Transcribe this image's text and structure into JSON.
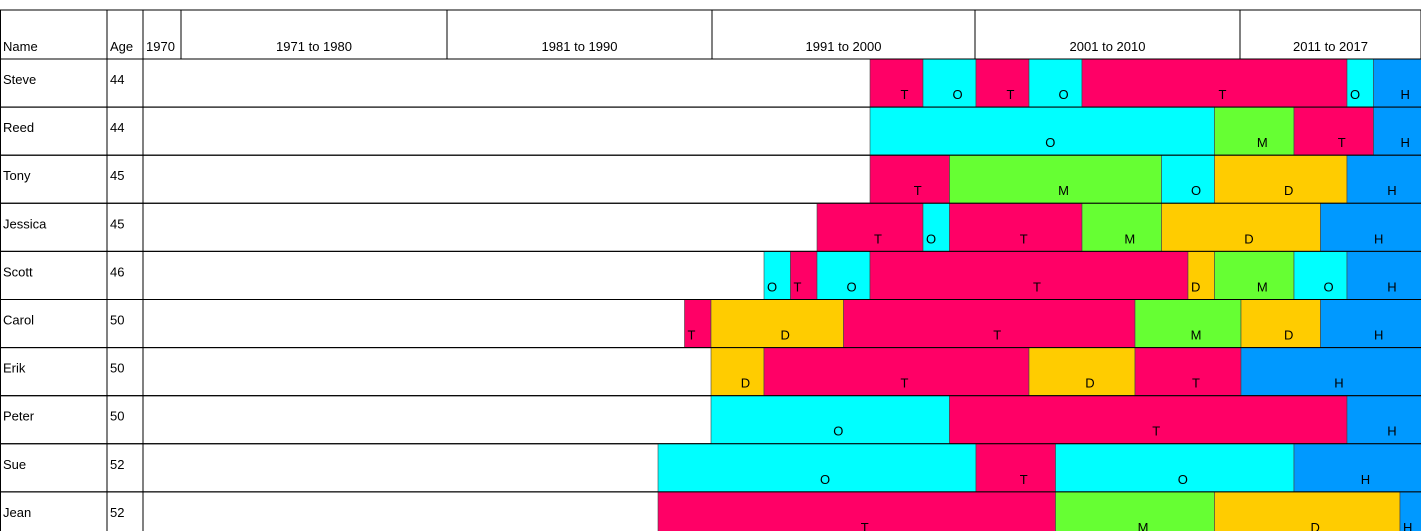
{
  "chart_data": {
    "type": "timeline",
    "headers": [
      "Name",
      "Age",
      "1970",
      "1971 to 1980",
      "1981 to 1990",
      "1991 to 2000",
      "2001 to 2010",
      "2011 to 2017"
    ],
    "colors": {
      "T": "#ff0066",
      "O": "#00ffff",
      "M": "#66ff33",
      "D": "#ffcc00",
      "H": "#0099ff"
    },
    "rows": [
      {
        "name": "Steve",
        "age": 44,
        "segments": [
          {
            "label": "T",
            "start": 1997,
            "end": 1999
          },
          {
            "label": "O",
            "start": 1999,
            "end": 2001
          },
          {
            "label": "T",
            "start": 2001,
            "end": 2003
          },
          {
            "label": "O",
            "start": 2003,
            "end": 2005
          },
          {
            "label": "T",
            "start": 2005,
            "end": 2015
          },
          {
            "label": "O",
            "start": 2015,
            "end": 2016
          },
          {
            "label": "H",
            "start": 2016,
            "end": 2018
          }
        ]
      },
      {
        "name": "Reed",
        "age": 44,
        "segments": [
          {
            "label": "O",
            "start": 1997,
            "end": 2010
          },
          {
            "label": "M",
            "start": 2010,
            "end": 2013
          },
          {
            "label": "T",
            "start": 2013,
            "end": 2016
          },
          {
            "label": "H",
            "start": 2016,
            "end": 2018
          }
        ]
      },
      {
        "name": "Tony",
        "age": 45,
        "segments": [
          {
            "label": "T",
            "start": 1997,
            "end": 2000
          },
          {
            "label": "M",
            "start": 2000,
            "end": 2008
          },
          {
            "label": "O",
            "start": 2008,
            "end": 2010
          },
          {
            "label": "D",
            "start": 2010,
            "end": 2015
          },
          {
            "label": "H",
            "start": 2015,
            "end": 2018
          }
        ]
      },
      {
        "name": "Jessica",
        "age": 45,
        "segments": [
          {
            "label": "T",
            "start": 1995,
            "end": 1999
          },
          {
            "label": "O",
            "start": 1999,
            "end": 2000
          },
          {
            "label": "T",
            "start": 2000,
            "end": 2005
          },
          {
            "label": "M",
            "start": 2005,
            "end": 2008
          },
          {
            "label": "D",
            "start": 2008,
            "end": 2014
          },
          {
            "label": "H",
            "start": 2014,
            "end": 2018
          }
        ]
      },
      {
        "name": "Scott",
        "age": 46,
        "segments": [
          {
            "label": "O",
            "start": 1993,
            "end": 1994
          },
          {
            "label": "T",
            "start": 1994,
            "end": 1995
          },
          {
            "label": "O",
            "start": 1995,
            "end": 1997
          },
          {
            "label": "T",
            "start": 1997,
            "end": 2009
          },
          {
            "label": "D",
            "start": 2009,
            "end": 2010
          },
          {
            "label": "M",
            "start": 2010,
            "end": 2013
          },
          {
            "label": "O",
            "start": 2013,
            "end": 2015
          },
          {
            "label": "H",
            "start": 2015,
            "end": 2018
          }
        ]
      },
      {
        "name": "Carol",
        "age": 50,
        "segments": [
          {
            "label": "T",
            "start": 1990,
            "end": 1991
          },
          {
            "label": "D",
            "start": 1991,
            "end": 1996
          },
          {
            "label": "T",
            "start": 1996,
            "end": 2007
          },
          {
            "label": "M",
            "start": 2007,
            "end": 2011
          },
          {
            "label": "D",
            "start": 2011,
            "end": 2014
          },
          {
            "label": "H",
            "start": 2014,
            "end": 2018
          }
        ]
      },
      {
        "name": "Erik",
        "age": 50,
        "segments": [
          {
            "label": "D",
            "start": 1991,
            "end": 1993
          },
          {
            "label": "T",
            "start": 1993,
            "end": 2003
          },
          {
            "label": "D",
            "start": 2003,
            "end": 2007
          },
          {
            "label": "T",
            "start": 2007,
            "end": 2011
          },
          {
            "label": "H",
            "start": 2011,
            "end": 2018
          }
        ]
      },
      {
        "name": "Peter",
        "age": 50,
        "segments": [
          {
            "label": "O",
            "start": 1991,
            "end": 2000
          },
          {
            "label": "T",
            "start": 2000,
            "end": 2015
          },
          {
            "label": "H",
            "start": 2015,
            "end": 2018
          }
        ]
      },
      {
        "name": "Sue",
        "age": 52,
        "segments": [
          {
            "label": "O",
            "start": 1989,
            "end": 2001
          },
          {
            "label": "T",
            "start": 2001,
            "end": 2004
          },
          {
            "label": "O",
            "start": 2004,
            "end": 2013
          },
          {
            "label": "H",
            "start": 2013,
            "end": 2018
          }
        ]
      },
      {
        "name": "Jean",
        "age": 52,
        "segments": [
          {
            "label": "T",
            "start": 1989,
            "end": 2004
          },
          {
            "label": "M",
            "start": 2004,
            "end": 2010
          },
          {
            "label": "D",
            "start": 2010,
            "end": 2017
          },
          {
            "label": "H",
            "start": 2017,
            "end": 2018
          }
        ]
      }
    ]
  }
}
